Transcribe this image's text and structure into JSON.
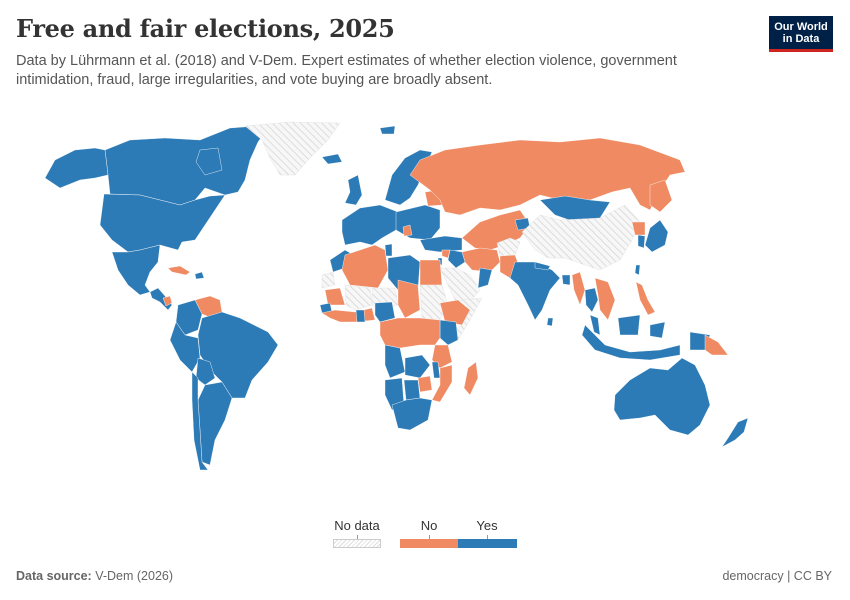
{
  "header": {
    "title": "Free and fair elections, 2025",
    "subtitle": "Data by Lührmann et al. (2018) and V-Dem. Expert estimates of whether election violence, government intimidation, fraud, large irregularities, and vote buying are broadly absent.",
    "logo_line1": "Our World",
    "logo_line2": "in Data"
  },
  "footer": {
    "source_label": "Data source:",
    "source_value": "V-Dem (2026)",
    "right": "democracy | CC BY"
  },
  "colors": {
    "yes": "#2d7bb6",
    "no": "#ef8a62",
    "no_data": "#dddddd",
    "logo_bg": "#002147",
    "logo_accent": "#ce261e"
  },
  "chart_data": {
    "type": "choropleth",
    "title": "Free and fair elections, 2025",
    "legend": {
      "placement": "bottom-center",
      "entries": [
        {
          "key": "no_data",
          "label": "No data"
        },
        {
          "key": "no",
          "label": "No"
        },
        {
          "key": "yes",
          "label": "Yes"
        }
      ]
    },
    "regions": [
      {
        "name": "Canada",
        "value": "yes"
      },
      {
        "name": "United States",
        "value": "yes"
      },
      {
        "name": "Alaska (United States)",
        "value": "yes"
      },
      {
        "name": "Mexico",
        "value": "yes"
      },
      {
        "name": "Central America",
        "value": "yes"
      },
      {
        "name": "Nicaragua",
        "value": "no"
      },
      {
        "name": "Cuba",
        "value": "no"
      },
      {
        "name": "Dominican Republic",
        "value": "yes"
      },
      {
        "name": "Venezuela",
        "value": "no"
      },
      {
        "name": "Colombia",
        "value": "yes"
      },
      {
        "name": "Brazil",
        "value": "yes"
      },
      {
        "name": "Peru",
        "value": "yes"
      },
      {
        "name": "Bolivia",
        "value": "yes"
      },
      {
        "name": "Argentina",
        "value": "yes"
      },
      {
        "name": "Chile",
        "value": "yes"
      },
      {
        "name": "Greenland",
        "value": "no_data"
      },
      {
        "name": "Iceland",
        "value": "yes"
      },
      {
        "name": "Svalbard",
        "value": "yes"
      },
      {
        "name": "Scandinavia",
        "value": "yes"
      },
      {
        "name": "United Kingdom",
        "value": "yes"
      },
      {
        "name": "Western Europe",
        "value": "yes"
      },
      {
        "name": "Eastern Europe",
        "value": "yes"
      },
      {
        "name": "Belarus",
        "value": "no"
      },
      {
        "name": "Serbia",
        "value": "no"
      },
      {
        "name": "Turkey",
        "value": "yes"
      },
      {
        "name": "Russia",
        "value": "no"
      },
      {
        "name": "Chukotka (Russia)",
        "value": "no"
      },
      {
        "name": "Central Asia",
        "value": "no"
      },
      {
        "name": "Kyrgyzstan",
        "value": "yes"
      },
      {
        "name": "Mongolia",
        "value": "yes"
      },
      {
        "name": "China",
        "value": "no_data"
      },
      {
        "name": "Afghanistan",
        "value": "no_data"
      },
      {
        "name": "Iran",
        "value": "no"
      },
      {
        "name": "Iraq",
        "value": "yes"
      },
      {
        "name": "Syria",
        "value": "no"
      },
      {
        "name": "Israel",
        "value": "yes"
      },
      {
        "name": "Saudi Arabia",
        "value": "no_data"
      },
      {
        "name": "Oman",
        "value": "yes"
      },
      {
        "name": "Pakistan",
        "value": "no"
      },
      {
        "name": "India",
        "value": "yes"
      },
      {
        "name": "Sri Lanka",
        "value": "yes"
      },
      {
        "name": "Nepal",
        "value": "yes"
      },
      {
        "name": "Bangladesh",
        "value": "yes"
      },
      {
        "name": "Myanmar",
        "value": "no"
      },
      {
        "name": "Thailand",
        "value": "yes"
      },
      {
        "name": "Indochina",
        "value": "no"
      },
      {
        "name": "Malaysia",
        "value": "yes"
      },
      {
        "name": "Indonesia",
        "value": "yes"
      },
      {
        "name": "Philippines",
        "value": "no"
      },
      {
        "name": "Papua New Guinea",
        "value": "no"
      },
      {
        "name": "South Korea",
        "value": "yes"
      },
      {
        "name": "North Korea",
        "value": "no"
      },
      {
        "name": "Japan",
        "value": "yes"
      },
      {
        "name": "Taiwan",
        "value": "yes"
      },
      {
        "name": "Australia",
        "value": "yes"
      },
      {
        "name": "New Zealand",
        "value": "yes"
      },
      {
        "name": "Morocco",
        "value": "yes"
      },
      {
        "name": "Algeria",
        "value": "no"
      },
      {
        "name": "Tunisia",
        "value": "yes"
      },
      {
        "name": "Libya",
        "value": "yes"
      },
      {
        "name": "Egypt",
        "value": "no"
      },
      {
        "name": "Western Sahara",
        "value": "no_data"
      },
      {
        "name": "Mauritania",
        "value": "no"
      },
      {
        "name": "Mali",
        "value": "no_data"
      },
      {
        "name": "Niger",
        "value": "no_data"
      },
      {
        "name": "Chad",
        "value": "no"
      },
      {
        "name": "Sudan",
        "value": "no_data"
      },
      {
        "name": "Senegal",
        "value": "yes"
      },
      {
        "name": "West Africa coast",
        "value": "no"
      },
      {
        "name": "Ghana",
        "value": "yes"
      },
      {
        "name": "Nigeria",
        "value": "yes"
      },
      {
        "name": "Ethiopia",
        "value": "no"
      },
      {
        "name": "Somalia",
        "value": "no_data"
      },
      {
        "name": "Kenya",
        "value": "yes"
      },
      {
        "name": "Central Africa",
        "value": "no"
      },
      {
        "name": "Tanzania",
        "value": "no"
      },
      {
        "name": "Angola",
        "value": "yes"
      },
      {
        "name": "Zambia",
        "value": "yes"
      },
      {
        "name": "Malawi",
        "value": "yes"
      },
      {
        "name": "Mozambique",
        "value": "no"
      },
      {
        "name": "Zimbabwe",
        "value": "no"
      },
      {
        "name": "Namibia",
        "value": "yes"
      },
      {
        "name": "Botswana",
        "value": "yes"
      },
      {
        "name": "South Africa",
        "value": "yes"
      },
      {
        "name": "Madagascar",
        "value": "no"
      }
    ]
  }
}
